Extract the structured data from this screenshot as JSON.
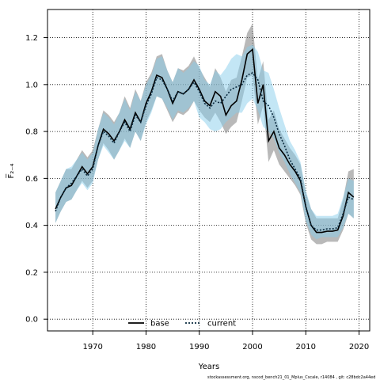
{
  "chart_data": {
    "type": "line",
    "xlabel": "Years",
    "ylabel": "F̅₂₋₄",
    "xlim": [
      1961.5,
      2022
    ],
    "ylim": [
      -0.05,
      1.32
    ],
    "xticks": [
      1970,
      1980,
      1990,
      2000,
      2010,
      2020
    ],
    "yticks": [
      0.0,
      0.2,
      0.4,
      0.6,
      0.8,
      1.0,
      1.2
    ],
    "ytick_labels": [
      "0.0",
      "0.2",
      "0.4",
      "0.6",
      "0.8",
      "1.0",
      "1.2"
    ],
    "grid": true,
    "legend_position": "bottom",
    "x": [
      1963,
      1964,
      1965,
      1966,
      1967,
      1968,
      1969,
      1970,
      1971,
      1972,
      1973,
      1974,
      1975,
      1976,
      1977,
      1978,
      1979,
      1980,
      1981,
      1982,
      1983,
      1984,
      1985,
      1986,
      1987,
      1988,
      1989,
      1990,
      1991,
      1992,
      1993,
      1994,
      1995,
      1996,
      1997,
      1998,
      1999,
      2000,
      2001,
      2002,
      2003,
      2004,
      2005,
      2006,
      2007,
      2008,
      2009,
      2010,
      2011,
      2012,
      2013,
      2014,
      2015,
      2016,
      2017,
      2018,
      2019
    ],
    "series": [
      {
        "name": "base",
        "color": "#000000",
        "band_color": "#808080",
        "values": [
          0.47,
          0.52,
          0.56,
          0.57,
          0.61,
          0.65,
          0.62,
          0.65,
          0.74,
          0.81,
          0.79,
          0.76,
          0.8,
          0.85,
          0.81,
          0.88,
          0.84,
          0.92,
          0.97,
          1.04,
          1.03,
          0.98,
          0.92,
          0.97,
          0.96,
          0.98,
          1.02,
          0.98,
          0.93,
          0.91,
          0.97,
          0.95,
          0.87,
          0.91,
          0.93,
          1.02,
          1.13,
          1.15,
          0.92,
          1.0,
          0.76,
          0.8,
          0.73,
          0.7,
          0.66,
          0.63,
          0.59,
          0.48,
          0.4,
          0.37,
          0.37,
          0.375,
          0.375,
          0.38,
          0.44,
          0.54,
          0.52
        ],
        "lower": [
          0.41,
          0.46,
          0.5,
          0.51,
          0.55,
          0.59,
          0.56,
          0.59,
          0.68,
          0.75,
          0.72,
          0.68,
          0.72,
          0.77,
          0.73,
          0.8,
          0.76,
          0.84,
          0.89,
          0.95,
          0.94,
          0.89,
          0.84,
          0.88,
          0.87,
          0.89,
          0.93,
          0.89,
          0.86,
          0.84,
          0.88,
          0.84,
          0.79,
          0.82,
          0.84,
          0.93,
          1.03,
          1.04,
          0.83,
          0.91,
          0.67,
          0.72,
          0.66,
          0.63,
          0.6,
          0.57,
          0.53,
          0.41,
          0.34,
          0.32,
          0.32,
          0.33,
          0.33,
          0.33,
          0.38,
          0.45,
          0.43
        ],
        "upper": [
          0.54,
          0.59,
          0.64,
          0.64,
          0.68,
          0.72,
          0.69,
          0.72,
          0.81,
          0.89,
          0.87,
          0.84,
          0.88,
          0.95,
          0.9,
          0.98,
          0.93,
          1.01,
          1.05,
          1.12,
          1.13,
          1.06,
          1.01,
          1.07,
          1.06,
          1.08,
          1.12,
          1.07,
          1.03,
          0.99,
          1.07,
          1.03,
          0.97,
          1.02,
          1.03,
          1.12,
          1.22,
          1.26,
          1.02,
          1.1,
          0.85,
          0.89,
          0.81,
          0.77,
          0.73,
          0.7,
          0.66,
          0.54,
          0.47,
          0.43,
          0.43,
          0.43,
          0.43,
          0.43,
          0.51,
          0.63,
          0.64
        ]
      },
      {
        "name": "current",
        "color": "#1a6fb3",
        "band_color": "#87ceeb",
        "values": [
          0.46,
          0.52,
          0.56,
          0.58,
          0.61,
          0.64,
          0.61,
          0.64,
          0.74,
          0.8,
          0.78,
          0.75,
          0.8,
          0.84,
          0.8,
          0.87,
          0.84,
          0.91,
          0.96,
          1.03,
          1.02,
          0.98,
          0.93,
          0.97,
          0.96,
          0.98,
          1.01,
          0.97,
          0.92,
          0.9,
          0.93,
          0.92,
          0.95,
          0.98,
          0.99,
          1.0,
          1.04,
          1.05,
          1.02,
          0.93,
          0.91,
          0.86,
          0.79,
          0.74,
          0.68,
          0.64,
          0.6,
          0.48,
          0.4,
          0.38,
          0.38,
          0.385,
          0.385,
          0.39,
          0.45,
          0.52,
          0.51
        ],
        "lower": [
          0.41,
          0.46,
          0.5,
          0.51,
          0.55,
          0.58,
          0.55,
          0.58,
          0.68,
          0.74,
          0.71,
          0.68,
          0.72,
          0.76,
          0.73,
          0.8,
          0.76,
          0.83,
          0.88,
          0.95,
          0.94,
          0.9,
          0.85,
          0.89,
          0.88,
          0.9,
          0.93,
          0.86,
          0.84,
          0.81,
          0.8,
          0.81,
          0.84,
          0.86,
          0.88,
          0.88,
          0.92,
          0.94,
          0.89,
          0.82,
          0.8,
          0.77,
          0.71,
          0.67,
          0.62,
          0.58,
          0.54,
          0.42,
          0.36,
          0.34,
          0.35,
          0.35,
          0.35,
          0.35,
          0.39,
          0.45,
          0.43
        ],
        "upper": [
          0.54,
          0.59,
          0.64,
          0.65,
          0.68,
          0.71,
          0.68,
          0.71,
          0.81,
          0.88,
          0.86,
          0.83,
          0.88,
          0.94,
          0.89,
          0.97,
          0.93,
          1.0,
          1.04,
          1.11,
          1.12,
          1.06,
          1.01,
          1.07,
          1.05,
          1.07,
          1.1,
          1.08,
          1.02,
          1.0,
          1.06,
          1.04,
          1.07,
          1.11,
          1.13,
          1.12,
          1.16,
          1.17,
          1.14,
          1.06,
          1.05,
          0.98,
          0.9,
          0.83,
          0.76,
          0.72,
          0.67,
          0.55,
          0.47,
          0.44,
          0.44,
          0.44,
          0.44,
          0.45,
          0.52,
          0.6,
          0.59
        ]
      }
    ]
  },
  "footnote": "stockassessment.org, nscod_bench21_01_Mplus_Cscale, r14084 , git: c28bdc2a44ed"
}
